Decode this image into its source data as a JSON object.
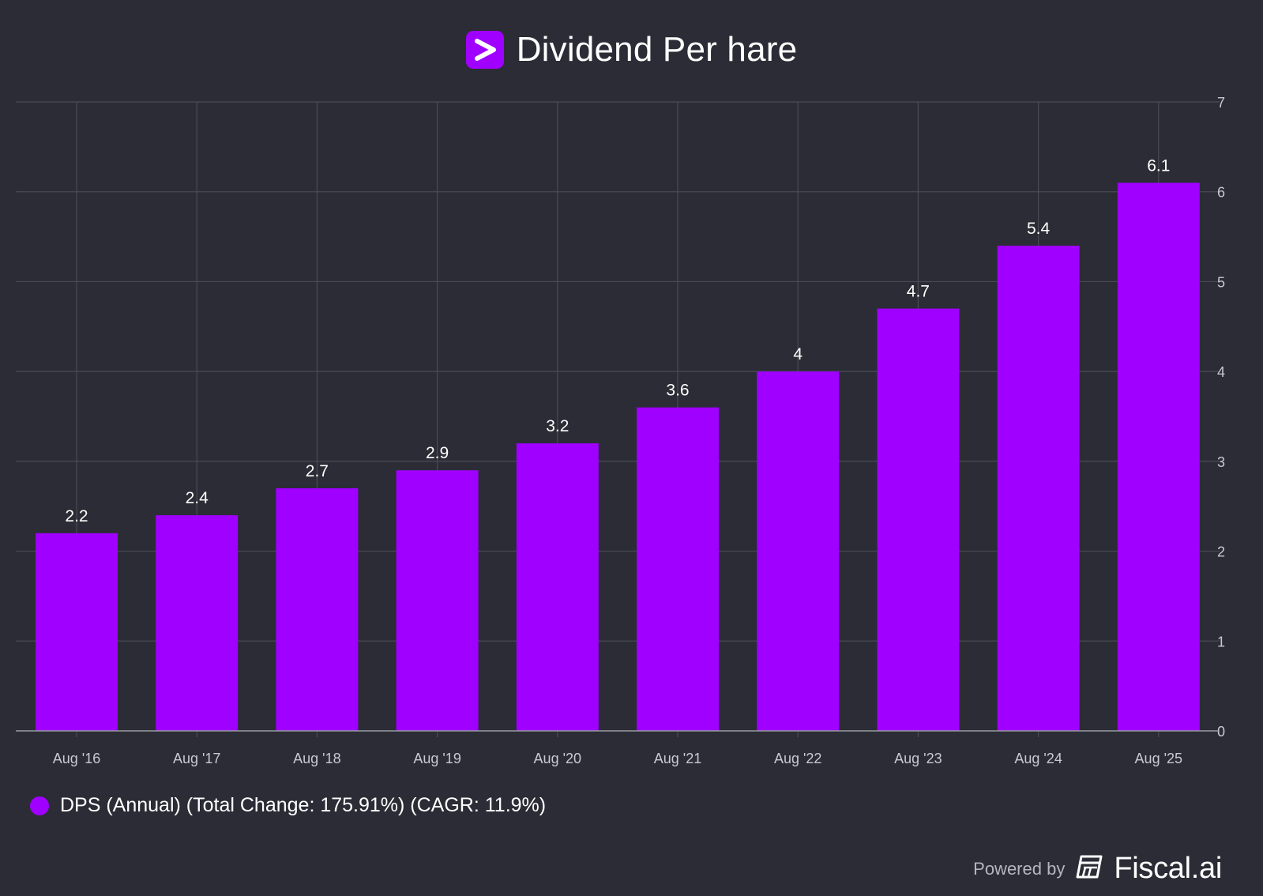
{
  "header": {
    "logo_icon": "chevron-right-icon",
    "title": "Dividend Per hare"
  },
  "colors": {
    "background": "#2b2c35",
    "bar": "#a000ff",
    "grid": "#4a4b55",
    "axis": "#9a9ba3",
    "tick_text": "#c9cad0",
    "label_text": "#ffffff"
  },
  "chart_data": {
    "type": "bar",
    "title": "Dividend Per hare",
    "categories": [
      "Aug '16",
      "Aug '17",
      "Aug '18",
      "Aug '19",
      "Aug '20",
      "Aug '21",
      "Aug '22",
      "Aug '23",
      "Aug '24",
      "Aug '25"
    ],
    "series": [
      {
        "name": "DPS (Annual) (Total Change: 175.91%) (CAGR: 11.9%)",
        "values": [
          2.2,
          2.4,
          2.7,
          2.9,
          3.2,
          3.6,
          4,
          4.7,
          5.4,
          6.1
        ],
        "labels": [
          "2.2",
          "2.4",
          "2.7",
          "2.9",
          "3.2",
          "3.6",
          "4",
          "4.7",
          "5.4",
          "6.1"
        ]
      }
    ],
    "ylim": [
      0,
      7
    ],
    "yticks": [
      "0",
      "1",
      "2",
      "3",
      "4",
      "5",
      "6",
      "7"
    ],
    "y_axis_side": "right",
    "grid": true,
    "legend_position": "bottom-left"
  },
  "legend": {
    "label": "DPS (Annual) (Total Change: 175.91%) (CAGR: 11.9%)"
  },
  "footer": {
    "powered_by": "Powered by",
    "brand": "Fiscal.ai",
    "brand_icon": "fiscal-logo-icon"
  }
}
